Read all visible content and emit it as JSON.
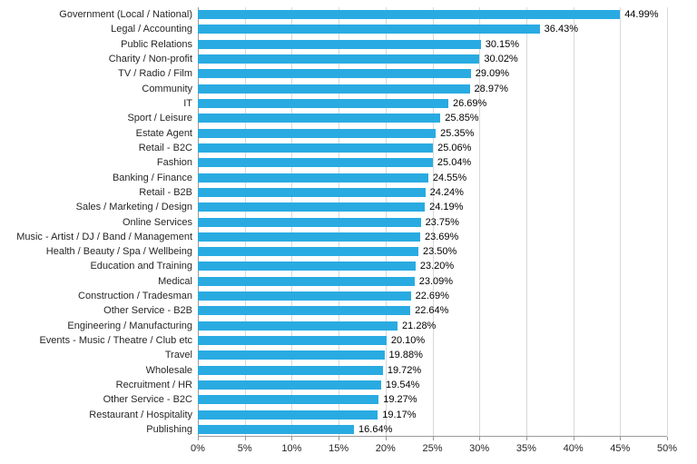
{
  "chart_data": {
    "type": "bar",
    "orientation": "horizontal",
    "title": "",
    "xlabel": "",
    "ylabel": "",
    "xlim": [
      0,
      50
    ],
    "x_ticks": [
      "0%",
      "5%",
      "10%",
      "15%",
      "20%",
      "25%",
      "30%",
      "35%",
      "40%",
      "45%",
      "50%"
    ],
    "grid": "vertical",
    "legend": "none",
    "bar_color": "#29ABE2",
    "grid_color": "#D9D9D9",
    "axis_color": "#9B9B9B",
    "categories": [
      "Government (Local / National)",
      "Legal / Accounting",
      "Public Relations",
      "Charity / Non-profit",
      "TV / Radio / Film",
      "Community",
      "IT",
      "Sport / Leisure",
      "Estate Agent",
      "Retail - B2C",
      "Fashion",
      "Banking / Finance",
      "Retail - B2B",
      "Sales / Marketing / Design",
      "Online Services",
      "Music - Artist / DJ / Band / Management",
      "Health / Beauty / Spa / Wellbeing",
      "Education and Training",
      "Medical",
      "Construction / Tradesman",
      "Other Service - B2B",
      "Engineering / Manufacturing",
      "Events - Music / Theatre / Club etc",
      "Travel",
      "Wholesale",
      "Recruitment / HR",
      "Other Service - B2C",
      "Restaurant / Hospitality",
      "Publishing"
    ],
    "values": [
      44.99,
      36.43,
      30.15,
      30.02,
      29.09,
      28.97,
      26.69,
      25.85,
      25.35,
      25.06,
      25.04,
      24.55,
      24.24,
      24.19,
      23.75,
      23.69,
      23.5,
      23.2,
      23.09,
      22.69,
      22.64,
      21.28,
      20.1,
      19.88,
      19.72,
      19.54,
      19.27,
      19.17,
      16.64
    ],
    "value_labels": [
      "44.99%",
      "36.43%",
      "30.15%",
      "30.02%",
      "29.09%",
      "28.97%",
      "26.69%",
      "25.85%",
      "25.35%",
      "25.06%",
      "25.04%",
      "24.55%",
      "24.24%",
      "24.19%",
      "23.75%",
      "23.69%",
      "23.50%",
      "23.20%",
      "23.09%",
      "22.69%",
      "22.64%",
      "21.28%",
      "20.10%",
      "19.88%",
      "19.72%",
      "19.54%",
      "19.27%",
      "19.17%",
      "16.64%"
    ]
  }
}
